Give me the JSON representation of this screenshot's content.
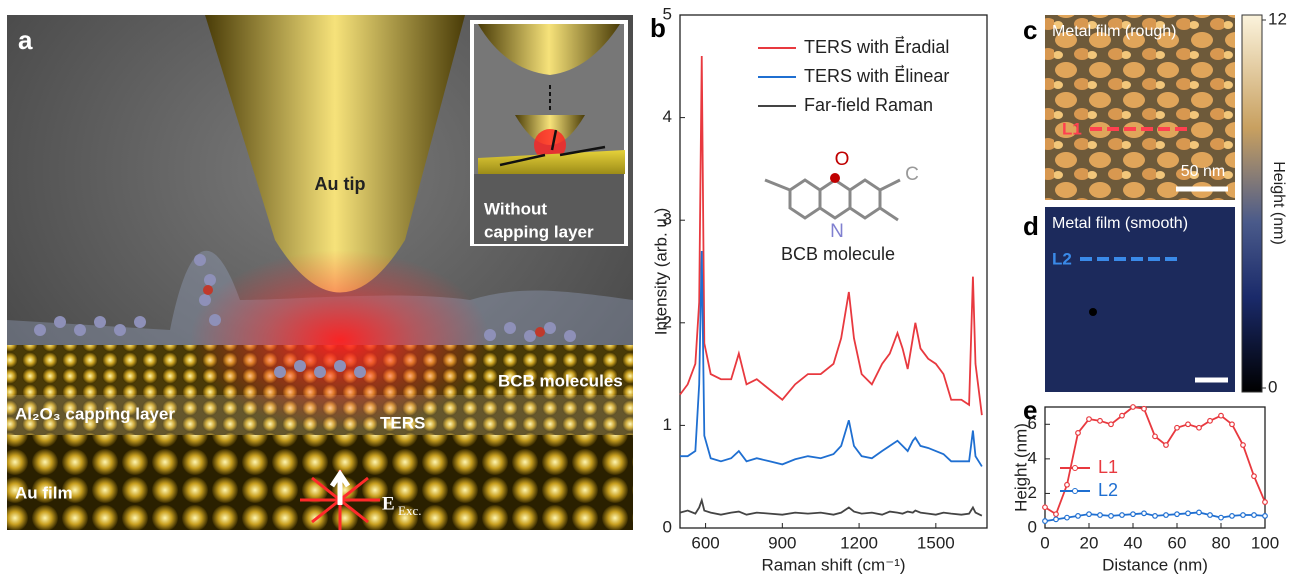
{
  "panel_labels": [
    "a",
    "b",
    "c",
    "d",
    "e"
  ],
  "illustration": {
    "tip": "Au tip",
    "inset": [
      "Without",
      "capping layer"
    ],
    "molecules": "BCB molecules",
    "capping": "Al₂O₃ capping layer",
    "ters": "TERS",
    "film": "Au film",
    "excitation": {
      "symbol": "E⃗",
      "subscript": "Exc."
    }
  },
  "maps": {
    "rough": {
      "title": "Metal film (rough)",
      "line": "L1",
      "scale": "50 nm"
    },
    "smooth": {
      "title": "Metal film (smooth)",
      "line": "L2"
    }
  },
  "colorbar": {
    "label": "Height (nm)",
    "lim": [
      0,
      12
    ],
    "ticks": [
      0,
      12
    ]
  },
  "chart_data": [
    {
      "type": "line",
      "xlabel": "Raman shift (cm⁻¹)",
      "ylabel": "Intensity (arb. u.)",
      "molecule": {
        "atoms": [
          "O",
          "C",
          "N"
        ],
        "label": "BCB molecule"
      },
      "x": [
        500,
        530,
        560,
        575,
        585,
        595,
        620,
        660,
        700,
        730,
        760,
        800,
        850,
        900,
        950,
        1000,
        1050,
        1100,
        1130,
        1160,
        1180,
        1210,
        1250,
        1290,
        1320,
        1350,
        1370,
        1390,
        1410,
        1420,
        1440,
        1470,
        1500,
        1530,
        1560,
        1600,
        1630,
        1645,
        1655,
        1680
      ],
      "series": [
        {
          "name": "TERS with E⃗radial",
          "color": "#e8393f",
          "values": [
            1.3,
            1.4,
            1.6,
            2.2,
            4.6,
            1.8,
            1.5,
            1.45,
            1.45,
            1.7,
            1.4,
            1.45,
            1.35,
            1.25,
            1.4,
            1.5,
            1.5,
            1.6,
            1.85,
            2.3,
            1.85,
            1.5,
            1.4,
            1.6,
            1.7,
            1.9,
            1.75,
            1.55,
            1.85,
            2.0,
            1.75,
            1.65,
            1.6,
            1.5,
            1.25,
            1.25,
            1.2,
            2.45,
            1.6,
            1.1
          ]
        },
        {
          "name": "TERS with E⃗linear",
          "color": "#1f6fd1",
          "values": [
            0.7,
            0.7,
            0.75,
            1.4,
            2.7,
            0.9,
            0.68,
            0.65,
            0.68,
            0.75,
            0.65,
            0.68,
            0.65,
            0.62,
            0.67,
            0.7,
            0.68,
            0.72,
            0.8,
            1.05,
            0.8,
            0.7,
            0.68,
            0.75,
            0.8,
            0.85,
            0.8,
            0.75,
            0.85,
            0.88,
            0.8,
            0.78,
            0.75,
            0.72,
            0.65,
            0.65,
            0.65,
            0.95,
            0.7,
            0.6
          ]
        },
        {
          "name": "Far-field Raman",
          "color": "#444444",
          "values": [
            0.15,
            0.17,
            0.14,
            0.2,
            0.27,
            0.17,
            0.15,
            0.13,
            0.15,
            0.16,
            0.13,
            0.15,
            0.14,
            0.13,
            0.15,
            0.14,
            0.15,
            0.13,
            0.15,
            0.2,
            0.16,
            0.14,
            0.15,
            0.13,
            0.16,
            0.15,
            0.14,
            0.16,
            0.15,
            0.17,
            0.15,
            0.14,
            0.13,
            0.15,
            0.14,
            0.13,
            0.14,
            0.2,
            0.15,
            0.12
          ]
        }
      ],
      "xlim": [
        500,
        1700
      ],
      "xticks": [
        600,
        900,
        1200,
        1500
      ],
      "ylim": [
        0,
        5
      ],
      "yticks": [
        0,
        1,
        2,
        3,
        4,
        5
      ],
      "markers": false
    },
    {
      "type": "line",
      "xlabel": "Distance (nm)",
      "ylabel": "Height (nm)",
      "x": [
        0,
        5,
        10,
        15,
        20,
        25,
        30,
        35,
        40,
        45,
        50,
        55,
        60,
        65,
        70,
        75,
        80,
        85,
        90,
        95,
        100
      ],
      "series": [
        {
          "name": "L1",
          "color": "#e8393f",
          "values": [
            1.2,
            0.8,
            2.5,
            5.5,
            6.3,
            6.2,
            6.0,
            6.5,
            7.0,
            6.9,
            5.3,
            4.8,
            5.8,
            6.0,
            5.8,
            6.2,
            6.5,
            6.0,
            4.8,
            3.0,
            1.5
          ]
        },
        {
          "name": "L2",
          "color": "#1f6fd1",
          "values": [
            0.4,
            0.5,
            0.6,
            0.7,
            0.8,
            0.75,
            0.7,
            0.75,
            0.8,
            0.85,
            0.7,
            0.75,
            0.8,
            0.85,
            0.9,
            0.75,
            0.6,
            0.7,
            0.75,
            0.75,
            0.7
          ]
        }
      ],
      "xlim": [
        0,
        100
      ],
      "xticks": [
        0,
        20,
        40,
        60,
        80,
        100
      ],
      "ylim": [
        0,
        7
      ],
      "yticks": [
        0,
        2,
        4,
        6
      ],
      "markers": true
    }
  ]
}
